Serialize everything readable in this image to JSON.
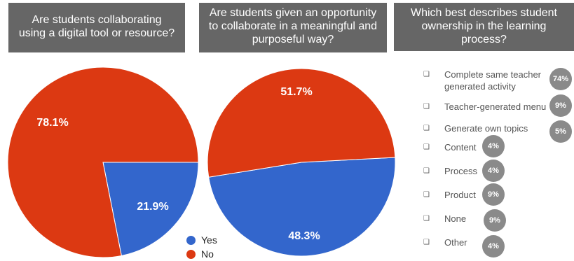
{
  "panels": {
    "q1": {
      "title_lines": [
        "Are students collaborating",
        "using a digital tool or resource?"
      ]
    },
    "q2": {
      "title_lines": [
        "Are students given an opportunity",
        "to collaborate in a meaningful and",
        "purposeful way?"
      ]
    },
    "q3": {
      "title_lines": [
        "Which best describes student",
        "ownership in the learning",
        "process?"
      ]
    }
  },
  "legend": [
    {
      "label": "Yes",
      "color": "#3366cc"
    },
    {
      "label": "No",
      "color": "#dc3912"
    }
  ],
  "chart_data": [
    {
      "type": "pie",
      "title": "Are students collaborating using a digital tool or resource?",
      "categories": [
        "Yes",
        "No"
      ],
      "values": [
        21.9,
        78.1
      ],
      "labels": [
        "21.9%",
        "78.1%"
      ],
      "colors": [
        "#3366cc",
        "#dc3912"
      ]
    },
    {
      "type": "pie",
      "title": "Are students given an opportunity to collaborate in a meaningful and purposeful way?",
      "categories": [
        "Yes",
        "No"
      ],
      "values": [
        48.3,
        51.7
      ],
      "labels": [
        "48.3%",
        "51.7%"
      ],
      "colors": [
        "#3366cc",
        "#dc3912"
      ]
    },
    {
      "type": "table",
      "title": "Which best describes student ownership in the learning process?",
      "rows": [
        {
          "label_lines": [
            "Complete same teacher",
            "generated activity"
          ],
          "value": "74%"
        },
        {
          "label_lines": [
            "Teacher-generated menu"
          ],
          "value": "9%"
        },
        {
          "label_lines": [
            "Generate own topics"
          ],
          "value": "5%"
        },
        {
          "label_lines": [
            "Content"
          ],
          "value": "4%"
        },
        {
          "label_lines": [
            "Process"
          ],
          "value": "4%"
        },
        {
          "label_lines": [
            "Product"
          ],
          "value": "9%"
        },
        {
          "label_lines": [
            "None"
          ],
          "value": "9%"
        },
        {
          "label_lines": [
            "Other"
          ],
          "value": "4%"
        }
      ]
    }
  ],
  "checkbox_glyph": "❑"
}
